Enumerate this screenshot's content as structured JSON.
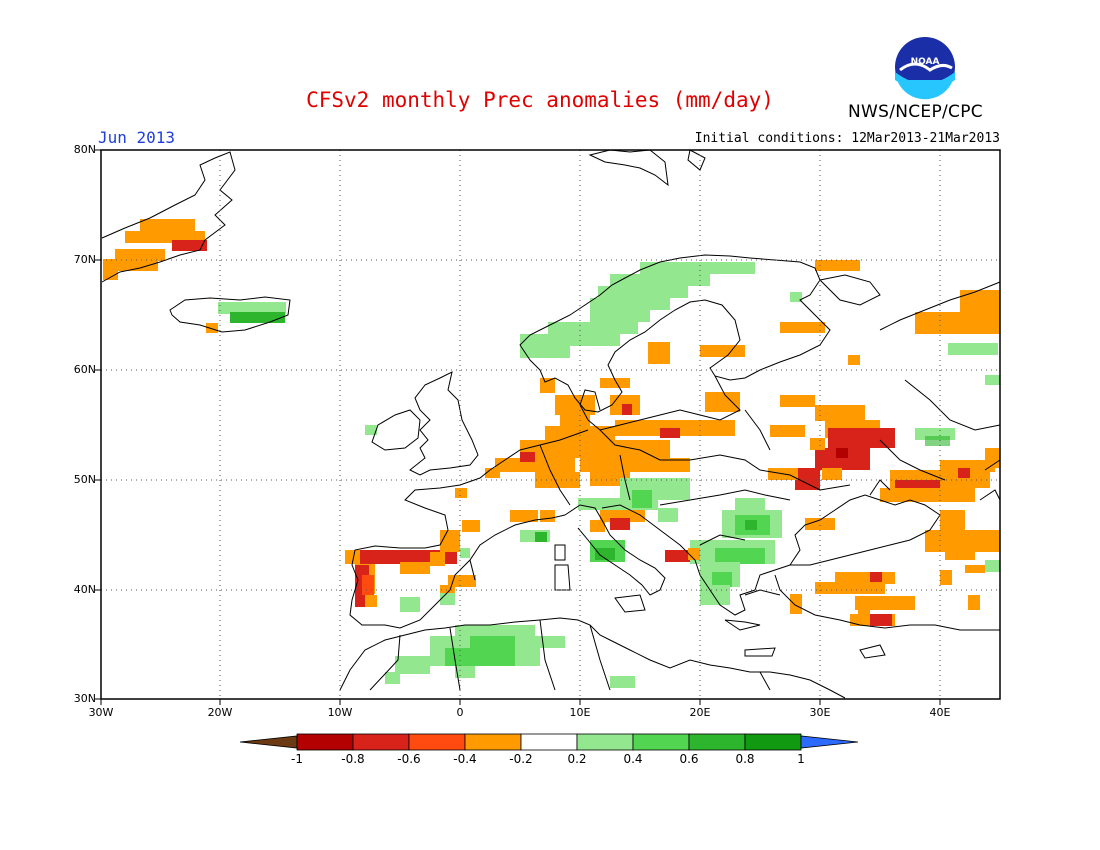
{
  "title": "CFSv2 monthly Prec anomalies (mm/day)",
  "organization": "NWS/NCEP/CPC",
  "logo_text": "NOAA",
  "period": "Jun 2013",
  "initial_conditions": "Initial conditions: 12Mar2013-21Mar2013",
  "map": {
    "lon_range": [
      -30,
      45
    ],
    "lat_range": [
      30,
      80
    ],
    "lat_labels": [
      "30N",
      "40N",
      "50N",
      "60N",
      "70N",
      "80N"
    ],
    "lon_labels": [
      "30W",
      "20W",
      "10W",
      "0",
      "10E",
      "20E",
      "30E",
      "40E"
    ],
    "grid": "dotted"
  },
  "colorbar": {
    "labels": [
      "-1",
      "-0.8",
      "-0.6",
      "-0.4",
      "-0.2",
      "0.2",
      "0.4",
      "0.6",
      "0.8",
      "1"
    ],
    "colors": [
      "#6b3a12",
      "#b30000",
      "#d8231a",
      "#ff4a10",
      "#ff9a00",
      "#ffffff",
      "#93e88f",
      "#52d652",
      "#2db52d",
      "#119a11",
      "#2d6bff"
    ]
  }
}
